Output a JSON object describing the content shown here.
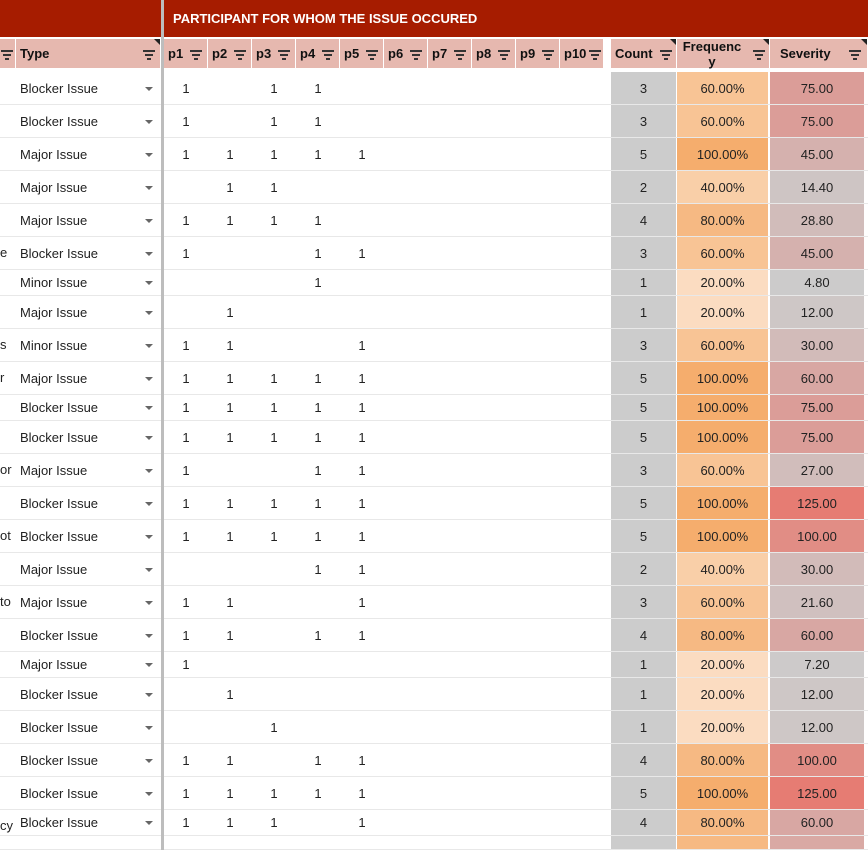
{
  "banner_title": "PARTICIPANT FOR WHOM THE ISSUE OCCURED",
  "headers": {
    "type": "Type",
    "participants": [
      "p1",
      "p2",
      "p3",
      "p4",
      "p5",
      "p6",
      "p7",
      "p8",
      "p9",
      "p10"
    ],
    "count": "Count",
    "frequency": "Frequenc y",
    "severity": "Severity"
  },
  "colors": {
    "banner": "#a61c00",
    "header": "#e6b8af",
    "count_bg": "#cccccc",
    "freq_20": "#fbdcc1",
    "freq_40": "#f9cfa8",
    "freq_60": "#f8c495",
    "freq_80": "#f6b983",
    "freq_100": "#f5ad6d"
  },
  "rows": [
    {
      "edge": "",
      "type": "Blocker Issue",
      "p": [
        "1",
        "",
        "1",
        "1",
        "",
        "",
        "",
        "",
        "",
        ""
      ],
      "count": "3",
      "frequency": "60.00%",
      "severity": "75.00"
    },
    {
      "edge": "",
      "type": "Blocker Issue",
      "p": [
        "1",
        "",
        "1",
        "1",
        "",
        "",
        "",
        "",
        "",
        ""
      ],
      "count": "3",
      "frequency": "60.00%",
      "severity": "75.00"
    },
    {
      "edge": "",
      "type": "Major Issue",
      "p": [
        "1",
        "1",
        "1",
        "1",
        "1",
        "",
        "",
        "",
        "",
        ""
      ],
      "count": "5",
      "frequency": "100.00%",
      "severity": "45.00"
    },
    {
      "edge": "",
      "type": "Major Issue",
      "p": [
        "",
        "1",
        "1",
        "",
        "",
        "",
        "",
        "",
        "",
        ""
      ],
      "count": "2",
      "frequency": "40.00%",
      "severity": "14.40"
    },
    {
      "edge": "",
      "type": "Major Issue",
      "p": [
        "1",
        "1",
        "1",
        "1",
        "",
        "",
        "",
        "",
        "",
        ""
      ],
      "count": "4",
      "frequency": "80.00%",
      "severity": "28.80"
    },
    {
      "edge": "e",
      "type": "Blocker Issue",
      "p": [
        "1",
        "",
        "",
        "1",
        "1",
        "",
        "",
        "",
        "",
        ""
      ],
      "count": "3",
      "frequency": "60.00%",
      "severity": "45.00"
    },
    {
      "edge": "",
      "type": "Minor Issue",
      "p": [
        "",
        "",
        "",
        "1",
        "",
        "",
        "",
        "",
        "",
        ""
      ],
      "count": "1",
      "frequency": "20.00%",
      "severity": "4.80"
    },
    {
      "edge": "",
      "type": "Major Issue",
      "p": [
        "",
        "1",
        "",
        "",
        "",
        "",
        "",
        "",
        "",
        ""
      ],
      "count": "1",
      "frequency": "20.00%",
      "severity": "12.00"
    },
    {
      "edge": "s",
      "type": "Minor Issue",
      "p": [
        "1",
        "1",
        "",
        "",
        "1",
        "",
        "",
        "",
        "",
        ""
      ],
      "count": "3",
      "frequency": "60.00%",
      "severity": "30.00"
    },
    {
      "edge": "r",
      "type": "Major Issue",
      "p": [
        "1",
        "1",
        "1",
        "1",
        "1",
        "",
        "",
        "",
        "",
        ""
      ],
      "count": "5",
      "frequency": "100.00%",
      "severity": "60.00"
    },
    {
      "edge": "",
      "type": "Blocker Issue",
      "p": [
        "1",
        "1",
        "1",
        "1",
        "1",
        "",
        "",
        "",
        "",
        ""
      ],
      "count": "5",
      "frequency": "100.00%",
      "severity": "75.00"
    },
    {
      "edge": "",
      "type": "Blocker Issue",
      "p": [
        "1",
        "1",
        "1",
        "1",
        "1",
        "",
        "",
        "",
        "",
        ""
      ],
      "count": "5",
      "frequency": "100.00%",
      "severity": "75.00"
    },
    {
      "edge": "or",
      "type": "Major Issue",
      "p": [
        "1",
        "",
        "",
        "1",
        "1",
        "",
        "",
        "",
        "",
        ""
      ],
      "count": "3",
      "frequency": "60.00%",
      "severity": "27.00"
    },
    {
      "edge": "",
      "type": "Blocker Issue",
      "p": [
        "1",
        "1",
        "1",
        "1",
        "1",
        "",
        "",
        "",
        "",
        ""
      ],
      "count": "5",
      "frequency": "100.00%",
      "severity": "125.00"
    },
    {
      "edge": "ot",
      "type": "Blocker Issue",
      "p": [
        "1",
        "1",
        "1",
        "1",
        "1",
        "",
        "",
        "",
        "",
        ""
      ],
      "count": "5",
      "frequency": "100.00%",
      "severity": "100.00"
    },
    {
      "edge": "",
      "type": "Major Issue",
      "p": [
        "",
        "",
        "",
        "1",
        "1",
        "",
        "",
        "",
        "",
        ""
      ],
      "count": "2",
      "frequency": "40.00%",
      "severity": "30.00"
    },
    {
      "edge": "to",
      "type": "Major Issue",
      "p": [
        "1",
        "1",
        "",
        "",
        "1",
        "",
        "",
        "",
        "",
        ""
      ],
      "count": "3",
      "frequency": "60.00%",
      "severity": "21.60"
    },
    {
      "edge": "",
      "type": "Blocker Issue",
      "p": [
        "1",
        "1",
        "",
        "1",
        "1",
        "",
        "",
        "",
        "",
        ""
      ],
      "count": "4",
      "frequency": "80.00%",
      "severity": "60.00"
    },
    {
      "edge": "",
      "type": "Major Issue",
      "p": [
        "1",
        "",
        "",
        "",
        "",
        "",
        "",
        "",
        "",
        ""
      ],
      "count": "1",
      "frequency": "20.00%",
      "severity": "7.20"
    },
    {
      "edge": "",
      "type": "Blocker Issue",
      "p": [
        "",
        "1",
        "",
        "",
        "",
        "",
        "",
        "",
        "",
        ""
      ],
      "count": "1",
      "frequency": "20.00%",
      "severity": "12.00"
    },
    {
      "edge": "",
      "type": "Blocker Issue",
      "p": [
        "",
        "",
        "1",
        "",
        "",
        "",
        "",
        "",
        "",
        ""
      ],
      "count": "1",
      "frequency": "20.00%",
      "severity": "12.00"
    },
    {
      "edge": "",
      "type": "Blocker Issue",
      "p": [
        "1",
        "1",
        "",
        "1",
        "1",
        "",
        "",
        "",
        "",
        ""
      ],
      "count": "4",
      "frequency": "80.00%",
      "severity": "100.00"
    },
    {
      "edge": "",
      "type": "Blocker Issue",
      "p": [
        "1",
        "1",
        "1",
        "1",
        "1",
        "",
        "",
        "",
        "",
        ""
      ],
      "count": "5",
      "frequency": "100.00%",
      "severity": "125.00"
    },
    {
      "edge": "cy",
      "type": "Blocker Issue",
      "p": [
        "1",
        "1",
        "1",
        "",
        "1",
        "",
        "",
        "",
        "",
        ""
      ],
      "count": "4",
      "frequency": "80.00%",
      "severity": "60.00"
    }
  ]
}
